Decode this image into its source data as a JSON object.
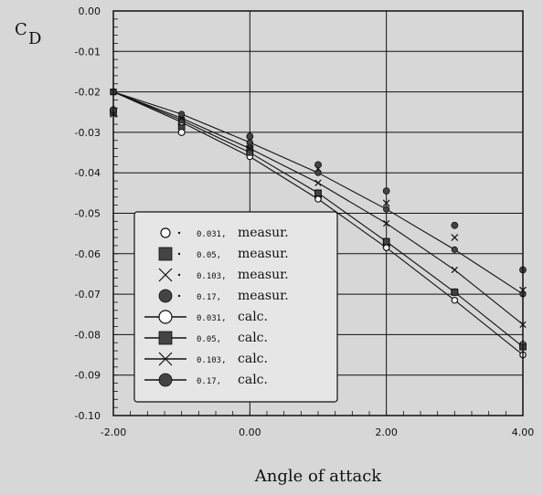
{
  "chart_data": {
    "type": "line",
    "title": "",
    "xlabel": "Angle of attack",
    "ylabel_main": "C",
    "ylabel_sub": "D",
    "xlim": [
      -2,
      4
    ],
    "ylim": [
      -0.1,
      0.0
    ],
    "x_ticks": [
      "-2.00",
      "0.00",
      "2.00",
      "4.00"
    ],
    "y_ticks": [
      "0.00",
      "-0.01",
      "-0.02",
      "-0.03",
      "-0.04",
      "-0.05",
      "-0.06",
      "-0.07",
      "-0.08",
      "-0.09",
      "-0.10"
    ],
    "grid": true,
    "legend_position": "lower-left",
    "series": [
      {
        "name": "0.031, measur.",
        "label_value": "0.031,",
        "label_kind": "measur.",
        "kind": "measur",
        "marker": "circle-open",
        "x": [
          -2,
          -1,
          0,
          1,
          2,
          3,
          4
        ],
        "y": [
          -0.0245,
          -0.03,
          -0.035,
          -0.046,
          -0.058,
          -0.0695,
          -0.0825
        ]
      },
      {
        "name": "0.05, measur.",
        "label_value": "0.05,",
        "label_kind": "measur.",
        "kind": "measur",
        "marker": "square",
        "x": [
          -2,
          -1,
          0,
          1,
          2,
          3,
          4
        ],
        "y": [
          -0.025,
          -0.0285,
          -0.034,
          -0.045,
          -0.057,
          -0.0695,
          -0.083
        ]
      },
      {
        "name": "0.103, measur.",
        "label_value": "0.103,",
        "label_kind": "measur.",
        "kind": "measur",
        "marker": "x",
        "x": [
          -2,
          -1,
          0,
          1,
          2,
          3,
          4
        ],
        "y": [
          -0.0255,
          -0.0275,
          -0.032,
          -0.039,
          -0.0475,
          -0.056,
          -0.069
        ]
      },
      {
        "name": "0.17, measur.",
        "label_value": "0.17,",
        "label_kind": "measur.",
        "kind": "measur",
        "marker": "circle-filled",
        "x": [
          -2,
          -1,
          0,
          1,
          2,
          3,
          4
        ],
        "y": [
          -0.0245,
          -0.027,
          -0.031,
          -0.038,
          -0.0445,
          -0.053,
          -0.064
        ]
      },
      {
        "name": "0.031, calc.",
        "label_value": "0.031,",
        "label_kind": "calc.",
        "kind": "calc",
        "marker": "circle-open",
        "x": [
          -2,
          -1,
          0,
          1,
          2,
          3,
          4
        ],
        "y": [
          -0.02,
          -0.0275,
          -0.036,
          -0.0465,
          -0.0585,
          -0.0715,
          -0.085
        ]
      },
      {
        "name": "0.05, calc.",
        "label_value": "0.05,",
        "label_kind": "calc.",
        "kind": "calc",
        "marker": "square",
        "x": [
          -2,
          -1,
          0,
          1,
          2,
          3,
          4
        ],
        "y": [
          -0.02,
          -0.027,
          -0.035,
          -0.045,
          -0.057,
          -0.0695,
          -0.083
        ]
      },
      {
        "name": "0.103, calc.",
        "label_value": "0.103,",
        "label_kind": "calc.",
        "kind": "calc",
        "marker": "x",
        "x": [
          -2,
          -1,
          0,
          1,
          2,
          3,
          4
        ],
        "y": [
          -0.02,
          -0.0265,
          -0.034,
          -0.0425,
          -0.0525,
          -0.064,
          -0.0775
        ]
      },
      {
        "name": "0.17, calc.",
        "label_value": "0.17,",
        "label_kind": "calc.",
        "kind": "calc",
        "marker": "circle-filled",
        "x": [
          -2,
          -1,
          0,
          1,
          2,
          3,
          4
        ],
        "y": [
          -0.02,
          -0.0255,
          -0.0325,
          -0.04,
          -0.049,
          -0.059,
          -0.07
        ]
      }
    ]
  },
  "colors": {
    "background": "#d7d7d7",
    "ink": "#111111",
    "legend_bg": "#e6e6e6"
  }
}
